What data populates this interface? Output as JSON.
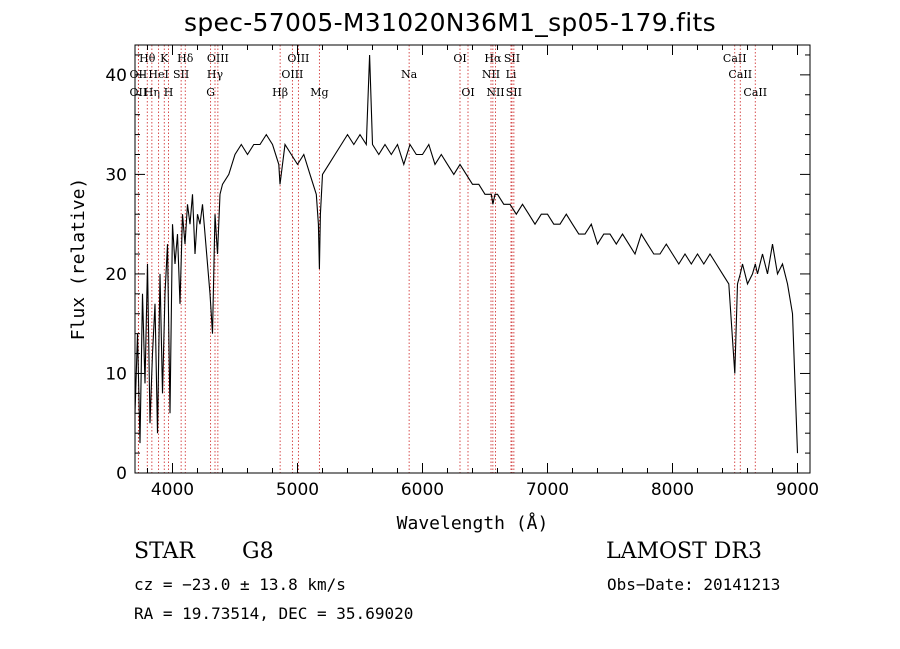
{
  "chart_data": {
    "type": "line",
    "title": "spec-57005-M31020N36M1_sp05-179.fits",
    "xlabel": "Wavelength (Å)",
    "ylabel": "Flux (relative)",
    "xlim": [
      3700,
      9100
    ],
    "ylim": [
      0,
      43
    ],
    "xticks": [
      4000,
      5000,
      6000,
      7000,
      8000,
      9000
    ],
    "yticks": [
      0,
      10,
      20,
      30,
      40
    ],
    "grid": false,
    "series": [
      {
        "name": "spectrum",
        "x": [
          3700,
          3720,
          3740,
          3760,
          3780,
          3800,
          3820,
          3840,
          3860,
          3880,
          3900,
          3920,
          3940,
          3960,
          3980,
          4000,
          4020,
          4040,
          4060,
          4080,
          4100,
          4120,
          4140,
          4160,
          4180,
          4200,
          4220,
          4240,
          4260,
          4280,
          4300,
          4320,
          4340,
          4360,
          4380,
          4400,
          4450,
          4500,
          4550,
          4600,
          4650,
          4700,
          4750,
          4800,
          4850,
          4860,
          4880,
          4900,
          4950,
          5000,
          5050,
          5100,
          5150,
          5167,
          5175,
          5183,
          5200,
          5250,
          5300,
          5350,
          5400,
          5450,
          5500,
          5550,
          5577,
          5600,
          5650,
          5700,
          5750,
          5800,
          5850,
          5900,
          5950,
          6000,
          6050,
          6100,
          6150,
          6200,
          6250,
          6300,
          6350,
          6400,
          6450,
          6500,
          6550,
          6563,
          6580,
          6600,
          6650,
          6700,
          6750,
          6800,
          6850,
          6900,
          6950,
          7000,
          7050,
          7100,
          7150,
          7200,
          7250,
          7300,
          7350,
          7400,
          7450,
          7500,
          7550,
          7600,
          7650,
          7700,
          7750,
          7800,
          7850,
          7900,
          7950,
          8000,
          8050,
          8100,
          8150,
          8200,
          8250,
          8300,
          8350,
          8400,
          8450,
          8498,
          8520,
          8542,
          8560,
          8580,
          8600,
          8640,
          8662,
          8680,
          8720,
          8760,
          8800,
          8840,
          8880,
          8920,
          8960,
          9000
        ],
        "y": [
          6,
          14,
          3,
          18,
          9,
          21,
          5,
          12,
          17,
          4,
          20,
          8,
          18,
          23,
          6,
          25,
          21,
          24,
          17,
          26,
          23,
          27,
          25,
          28,
          22,
          26,
          25,
          27,
          24,
          21,
          18,
          14,
          26,
          22,
          28,
          29,
          30,
          32,
          33,
          32,
          33,
          33,
          34,
          33,
          31,
          29,
          31,
          33,
          32,
          31,
          32,
          30,
          28,
          25,
          20.5,
          26,
          30,
          31,
          32,
          33,
          34,
          33,
          34,
          33,
          42,
          33,
          32,
          33,
          32,
          33,
          31,
          33,
          32,
          32,
          33,
          31,
          32,
          31,
          30,
          31,
          30,
          29,
          29,
          28,
          28,
          27,
          28,
          28,
          27,
          27,
          26,
          27,
          26,
          25,
          26,
          26,
          25,
          25,
          26,
          25,
          24,
          24,
          25,
          23,
          24,
          24,
          23,
          24,
          23,
          22,
          24,
          23,
          22,
          22,
          23,
          22,
          21,
          22,
          21,
          22,
          21,
          22,
          21,
          20,
          19,
          10,
          19,
          20,
          21,
          20,
          19,
          20,
          21,
          20,
          22,
          20,
          23,
          20,
          21,
          19,
          16,
          2
        ]
      }
    ],
    "lines": [
      {
        "label": "Hθ",
        "wave": 3798,
        "row": 1
      },
      {
        "label": "OII",
        "wave": 3727,
        "row": 2
      },
      {
        "label": "OII",
        "wave": 3727,
        "row": 3
      },
      {
        "label": "Hη",
        "wave": 3835,
        "row": 3
      },
      {
        "label": "K",
        "wave": 3934,
        "row": 1
      },
      {
        "label": "HeI",
        "wave": 3889,
        "row": 2
      },
      {
        "label": "SII",
        "wave": 4069,
        "row": 2
      },
      {
        "label": "H",
        "wave": 3968,
        "row": 3
      },
      {
        "label": "Hδ",
        "wave": 4102,
        "row": 1
      },
      {
        "label": "OIII",
        "wave": 4363,
        "row": 1
      },
      {
        "label": "Hγ",
        "wave": 4340,
        "row": 2
      },
      {
        "label": "G",
        "wave": 4305,
        "row": 3
      },
      {
        "label": "OIII",
        "wave": 5007,
        "row": 1
      },
      {
        "label": "OIII",
        "wave": 4959,
        "row": 2
      },
      {
        "label": "Hβ",
        "wave": 4861,
        "row": 3
      },
      {
        "label": "Mg",
        "wave": 5175,
        "row": 3
      },
      {
        "label": "Na",
        "wave": 5893,
        "row": 2
      },
      {
        "label": "OI",
        "wave": 6300,
        "row": 1
      },
      {
        "label": "OI",
        "wave": 6364,
        "row": 3
      },
      {
        "label": "Hα",
        "wave": 6563,
        "row": 1
      },
      {
        "label": "SII",
        "wave": 6716,
        "row": 1
      },
      {
        "label": "NII",
        "wave": 6548,
        "row": 2
      },
      {
        "label": "Li",
        "wave": 6708,
        "row": 2
      },
      {
        "label": "NII",
        "wave": 6584,
        "row": 3
      },
      {
        "label": "SII",
        "wave": 6731,
        "row": 3
      },
      {
        "label": "CaII",
        "wave": 8498,
        "row": 1
      },
      {
        "label": "CaII",
        "wave": 8542,
        "row": 2
      },
      {
        "label": "CaII",
        "wave": 8662,
        "row": 3
      }
    ]
  },
  "info": {
    "object_class": "STAR",
    "subclass": "G8",
    "survey": "LAMOST DR3",
    "cz": "cz = −23.0 ± 13.8 km/s",
    "obs_date": "Obs−Date: 20141213",
    "radec": "RA =  19.73514, DEC =  35.69020"
  }
}
